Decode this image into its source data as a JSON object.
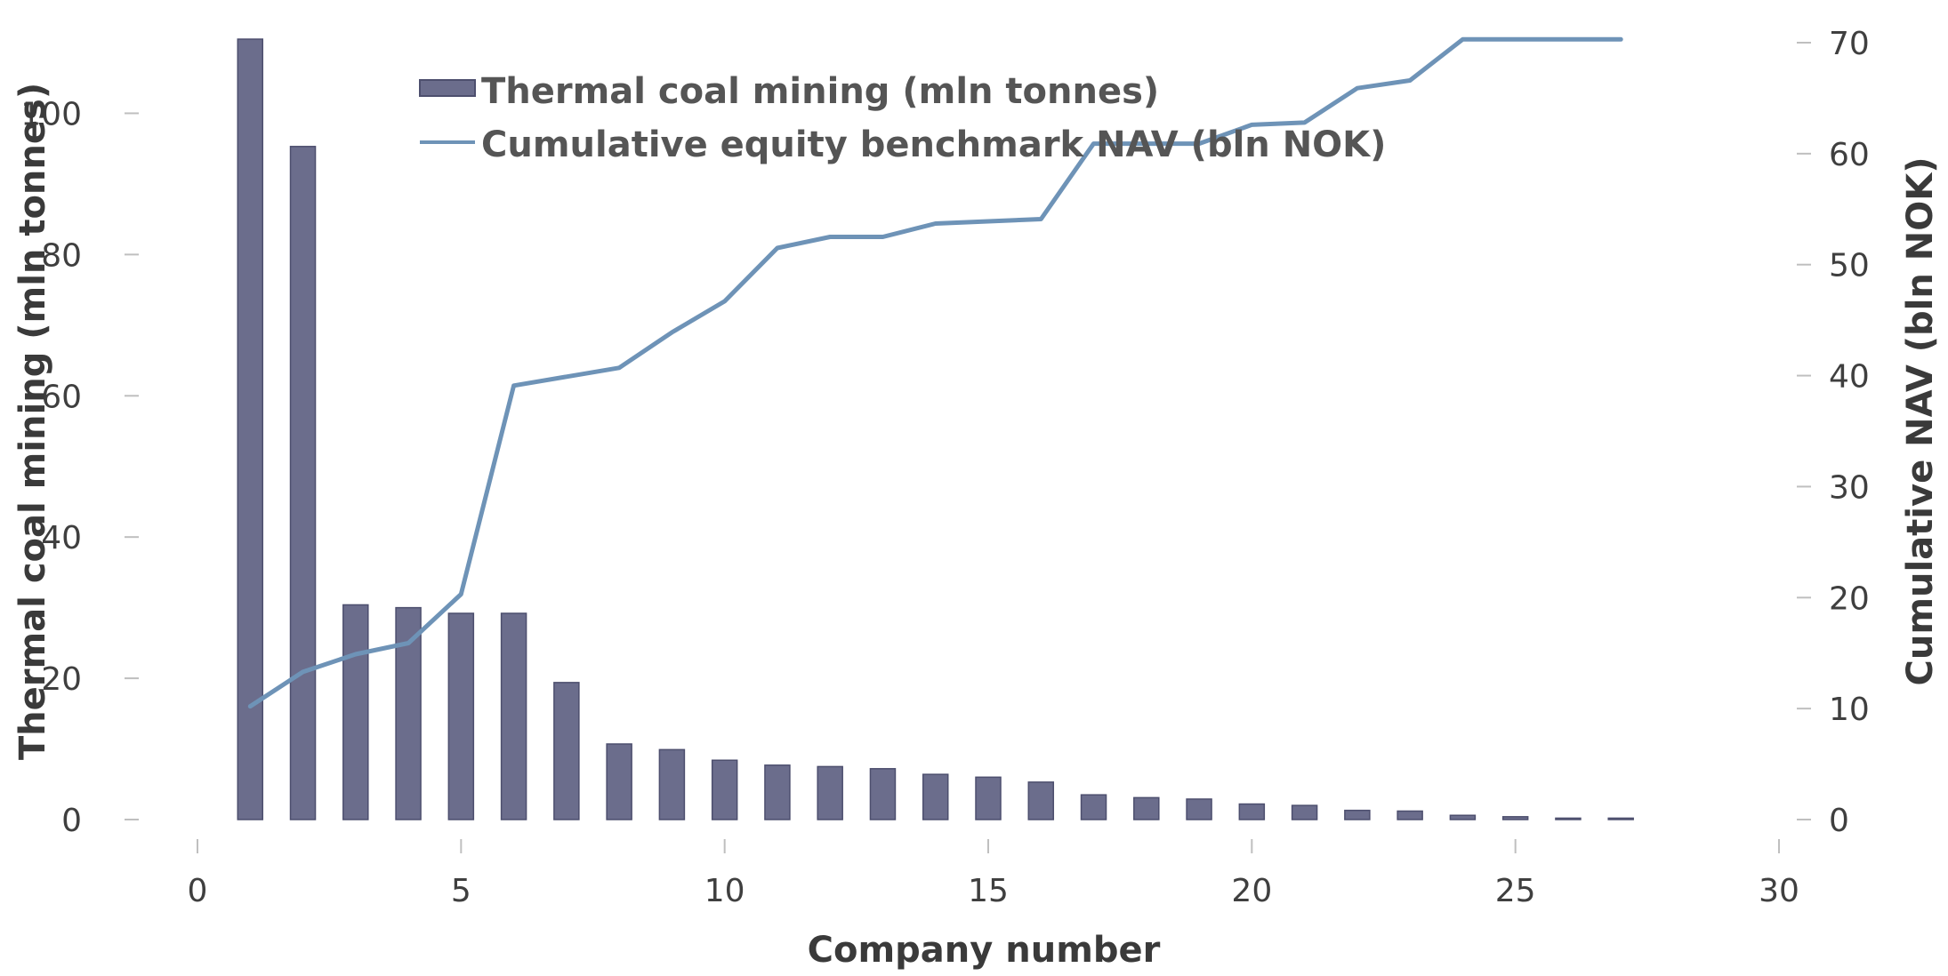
{
  "chart_data": {
    "type": "bar+line",
    "title": "",
    "xlabel": "Company number",
    "ylabel": "Thermal coal mining (mln tonnes)",
    "y2label": "Cumulative NAV (bln NOK)",
    "xlim": [
      0,
      30
    ],
    "ylim": [
      0,
      110
    ],
    "y2lim": [
      0,
      70
    ],
    "x_ticks": [
      "0",
      "5",
      "10",
      "15",
      "20",
      "25",
      "30"
    ],
    "x_tick_values": [
      0,
      5,
      10,
      15,
      20,
      25,
      30
    ],
    "y_ticks": [
      "0",
      "20",
      "40",
      "60",
      "80",
      "100"
    ],
    "y_tick_values": [
      0,
      20,
      40,
      60,
      80,
      100
    ],
    "y2_ticks": [
      "0",
      "10",
      "20",
      "30",
      "40",
      "50",
      "60",
      "70"
    ],
    "y2_tick_values": [
      0,
      10,
      20,
      30,
      40,
      50,
      60,
      70
    ],
    "grid": false,
    "legend_position": "top-center",
    "colors": {
      "bars": "#6b6d8c",
      "bar_edge": "#4d4f6e",
      "line": "#6e93b7",
      "tick": "#bfbfbf"
    },
    "series": [
      {
        "name": "Thermal coal mining (mln tonnes)",
        "type": "bar",
        "axis": "left",
        "x": [
          1,
          2,
          3,
          4,
          5,
          6,
          7,
          8,
          9,
          10,
          11,
          12,
          13,
          14,
          15,
          16,
          17,
          18,
          19,
          20,
          21,
          22,
          23,
          24,
          25,
          26,
          27
        ],
        "values": [
          110.5,
          95.3,
          30.4,
          30.0,
          29.2,
          29.2,
          19.4,
          10.7,
          9.9,
          8.4,
          7.7,
          7.5,
          7.2,
          6.4,
          6.0,
          5.3,
          3.5,
          3.1,
          2.9,
          2.2,
          2.0,
          1.3,
          1.2,
          0.6,
          0.4,
          0.2,
          0.2
        ]
      },
      {
        "name": "Cumulative equity benchmark NAV (bln NOK)",
        "type": "line",
        "axis": "right",
        "x": [
          1,
          2,
          3,
          4,
          5,
          6,
          7,
          8,
          9,
          10,
          11,
          12,
          13,
          14,
          15,
          16,
          17,
          18,
          19,
          20,
          21,
          22,
          23,
          24,
          25,
          26,
          27
        ],
        "values": [
          10.2,
          13.3,
          14.9,
          15.9,
          20.3,
          39.1,
          39.9,
          40.7,
          43.9,
          46.7,
          51.5,
          52.5,
          52.5,
          53.7,
          53.9,
          54.1,
          60.9,
          60.9,
          60.9,
          62.6,
          62.8,
          65.9,
          66.6,
          70.3,
          70.3,
          70.3,
          70.3
        ]
      }
    ]
  }
}
